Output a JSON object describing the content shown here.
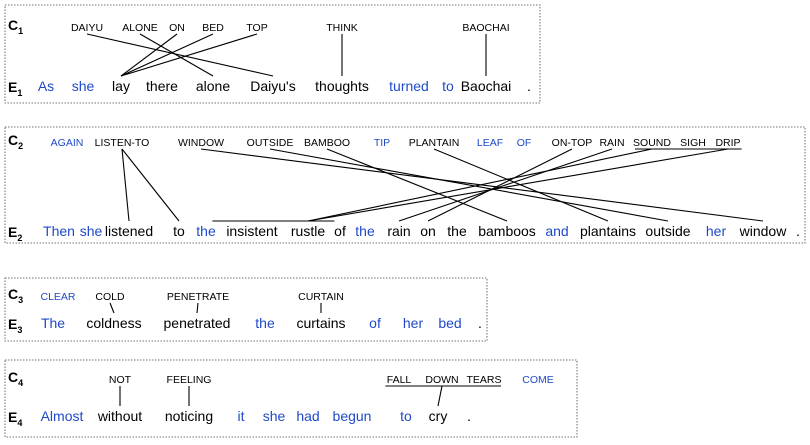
{
  "colors": {
    "content": "#000000",
    "function": "#1f49c9"
  },
  "examples": [
    {
      "clabel": "C",
      "elabel": "E",
      "idx": "1",
      "c": [
        {
          "t": "DAIYU",
          "f": false
        },
        {
          "t": "ALONE",
          "f": false
        },
        {
          "t": "ON",
          "f": false
        },
        {
          "t": "BED",
          "f": false
        },
        {
          "t": "TOP",
          "f": false
        },
        {
          "t": "THINK",
          "f": false
        },
        {
          "t": "BAOCHAI",
          "f": false
        }
      ],
      "e": [
        {
          "t": "As",
          "f": true
        },
        {
          "t": "she",
          "f": true
        },
        {
          "t": "lay",
          "f": false
        },
        {
          "t": "there",
          "f": false
        },
        {
          "t": "alone",
          "f": false
        },
        {
          "t": "Daiyu's",
          "f": false
        },
        {
          "t": "thoughts",
          "f": false
        },
        {
          "t": "turned",
          "f": true
        },
        {
          "t": "to",
          "f": true
        },
        {
          "t": "Baochai",
          "f": false
        },
        {
          "t": ".",
          "f": false
        }
      ],
      "links": [
        [
          0,
          5
        ],
        [
          1,
          4
        ],
        [
          2,
          2
        ],
        [
          3,
          2
        ],
        [
          4,
          2
        ],
        [
          5,
          6
        ],
        [
          6,
          9
        ]
      ],
      "bars": []
    },
    {
      "clabel": "C",
      "elabel": "E",
      "idx": "2",
      "c": [
        {
          "t": "AGAIN",
          "f": true
        },
        {
          "t": "LISTEN-TO",
          "f": false
        },
        {
          "t": "WINDOW",
          "f": false
        },
        {
          "t": "OUTSIDE",
          "f": false
        },
        {
          "t": "BAMBOO",
          "f": false
        },
        {
          "t": "TIP",
          "f": true
        },
        {
          "t": "PLANTAIN",
          "f": false
        },
        {
          "t": "LEAF",
          "f": true
        },
        {
          "t": "OF",
          "f": true
        },
        {
          "t": "ON-TOP",
          "f": false
        },
        {
          "t": "RAIN",
          "f": false
        },
        {
          "t": "SOUND",
          "f": false
        },
        {
          "t": "SIGH",
          "f": false
        },
        {
          "t": "DRIP",
          "f": false
        }
      ],
      "e": [
        {
          "t": "Then",
          "f": true
        },
        {
          "t": "she",
          "f": true
        },
        {
          "t": "listened",
          "f": false
        },
        {
          "t": "to",
          "f": false
        },
        {
          "t": "the",
          "f": true
        },
        {
          "t": "insistent",
          "f": false
        },
        {
          "t": "rustle",
          "f": false
        },
        {
          "t": "of",
          "f": false
        },
        {
          "t": "the",
          "f": true
        },
        {
          "t": "rain",
          "f": false
        },
        {
          "t": "on",
          "f": false
        },
        {
          "t": "the",
          "f": false
        },
        {
          "t": "bamboos",
          "f": false
        },
        {
          "t": "and",
          "f": true
        },
        {
          "t": "plantains",
          "f": false
        },
        {
          "t": "outside",
          "f": false
        },
        {
          "t": "her",
          "f": true
        },
        {
          "t": "window",
          "f": false
        },
        {
          "t": ".",
          "f": false
        }
      ],
      "links": [
        [
          1,
          2
        ],
        [
          1,
          3
        ],
        [
          2,
          17
        ],
        [
          3,
          15
        ],
        [
          4,
          12
        ],
        [
          6,
          14
        ],
        [
          9,
          10
        ],
        [
          10,
          9
        ],
        [
          11,
          6
        ],
        [
          13,
          6
        ]
      ],
      "bars": [
        {
          "side": "c",
          "from": 11,
          "to": 13,
          "at": 12
        },
        {
          "side": "e",
          "from": 5,
          "to": 6,
          "at": 6
        }
      ]
    },
    {
      "clabel": "C",
      "elabel": "E",
      "idx": "3",
      "c": [
        {
          "t": "CLEAR",
          "f": true
        },
        {
          "t": "COLD",
          "f": false
        },
        {
          "t": "PENETRATE",
          "f": false
        },
        {
          "t": "CURTAIN",
          "f": false
        }
      ],
      "e": [
        {
          "t": "The",
          "f": true
        },
        {
          "t": "coldness",
          "f": false
        },
        {
          "t": "penetrated",
          "f": false
        },
        {
          "t": "the",
          "f": true
        },
        {
          "t": "curtains",
          "f": false
        },
        {
          "t": "of",
          "f": true
        },
        {
          "t": "her",
          "f": true
        },
        {
          "t": "bed",
          "f": true
        },
        {
          "t": ".",
          "f": false
        }
      ],
      "links": [
        [
          1,
          1
        ],
        [
          2,
          2
        ],
        [
          3,
          4
        ]
      ],
      "bars": []
    },
    {
      "clabel": "C",
      "elabel": "E",
      "idx": "4",
      "c": [
        {
          "t": "NOT",
          "f": false
        },
        {
          "t": "FEELING",
          "f": false
        },
        {
          "t": "FALL",
          "f": false
        },
        {
          "t": "DOWN",
          "f": false
        },
        {
          "t": "TEARS",
          "f": false
        },
        {
          "t": "COME",
          "f": true
        }
      ],
      "e": [
        {
          "t": "Almost",
          "f": true
        },
        {
          "t": "without",
          "f": false
        },
        {
          "t": "noticing",
          "f": false
        },
        {
          "t": "it",
          "f": true
        },
        {
          "t": "she",
          "f": true
        },
        {
          "t": "had",
          "f": true
        },
        {
          "t": "begun",
          "f": true
        },
        {
          "t": "to",
          "f": true
        },
        {
          "t": "cry",
          "f": false
        },
        {
          "t": ".",
          "f": false
        }
      ],
      "links": [
        [
          0,
          1
        ],
        [
          1,
          2
        ],
        [
          3,
          8
        ]
      ],
      "bars": [
        {
          "side": "c",
          "from": 2,
          "to": 4,
          "at": 3
        }
      ]
    }
  ]
}
